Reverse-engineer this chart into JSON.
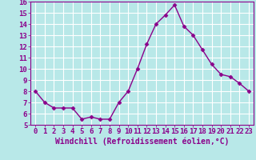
{
  "x": [
    0,
    1,
    2,
    3,
    4,
    5,
    6,
    7,
    8,
    9,
    10,
    11,
    12,
    13,
    14,
    15,
    16,
    17,
    18,
    19,
    20,
    21,
    22,
    23
  ],
  "y": [
    8.0,
    7.0,
    6.5,
    6.5,
    6.5,
    5.5,
    5.7,
    5.5,
    5.5,
    7.0,
    8.0,
    10.0,
    12.2,
    14.0,
    14.8,
    15.7,
    13.8,
    13.0,
    11.7,
    10.4,
    9.5,
    9.3,
    8.7,
    8.0
  ],
  "line_color": "#8b008b",
  "marker": "D",
  "marker_size": 2.5,
  "xlabel": "Windchill (Refroidissement éolien,°C)",
  "xlim": [
    -0.5,
    23.5
  ],
  "ylim": [
    5,
    16
  ],
  "yticks": [
    5,
    6,
    7,
    8,
    9,
    10,
    11,
    12,
    13,
    14,
    15,
    16
  ],
  "xticks": [
    0,
    1,
    2,
    3,
    4,
    5,
    6,
    7,
    8,
    9,
    10,
    11,
    12,
    13,
    14,
    15,
    16,
    17,
    18,
    19,
    20,
    21,
    22,
    23
  ],
  "bg_color": "#b8e8e8",
  "grid_color": "#d0f0f0",
  "tick_label_color": "#8b008b",
  "xlabel_color": "#8b008b",
  "xlabel_fontsize": 7.0,
  "tick_fontsize": 6.5,
  "line_width": 1.0
}
